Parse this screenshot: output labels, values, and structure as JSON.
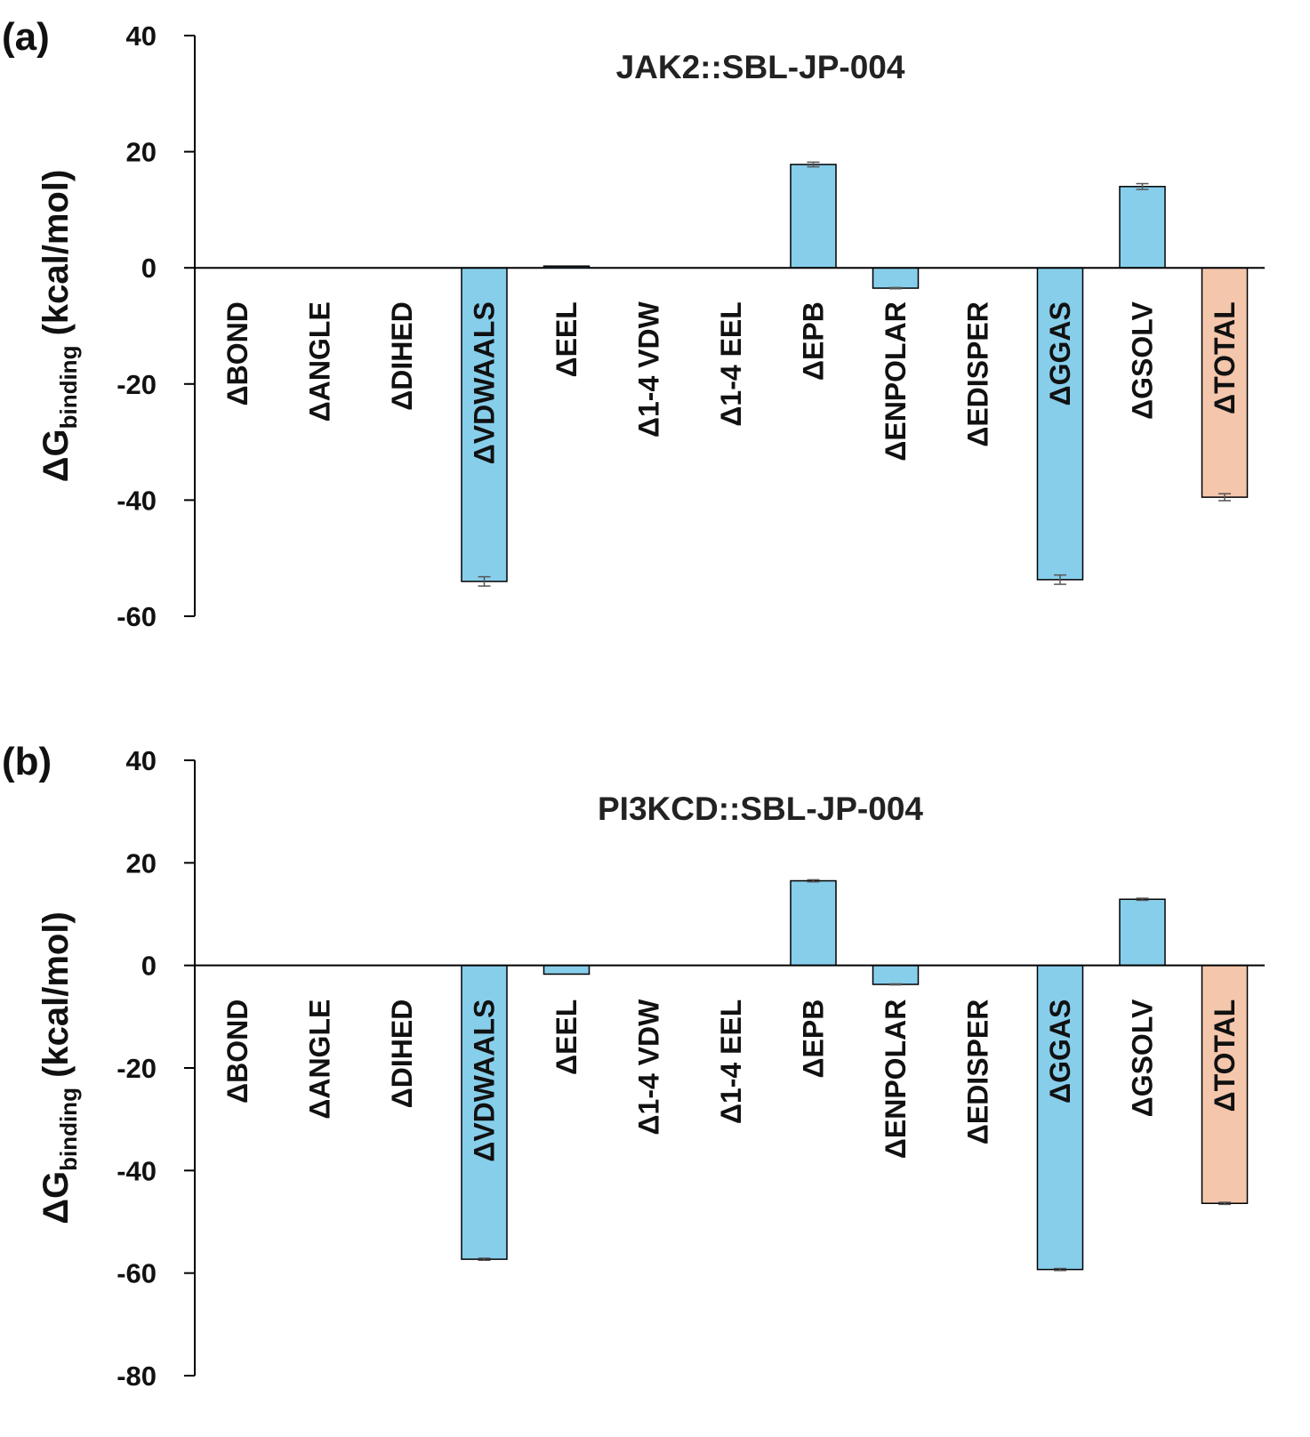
{
  "figure": {
    "ylabel_main": "ΔG",
    "ylabel_sub": "binding",
    "ylabel_unit": " (kcal/mol)"
  },
  "colors": {
    "bar_blue": "#87ceeb",
    "bar_total": "#f4c6ac",
    "axis": "#000000",
    "errorbar": "#555555"
  },
  "chart_data": [
    {
      "type": "bar",
      "panel_label": "(a)",
      "title": "JAK2::SBL-JP-004",
      "ylabel": "ΔGbinding (kcal/mol)",
      "ylim": [
        -60,
        40
      ],
      "yticks": [
        40,
        20,
        0,
        -20,
        -40,
        -60
      ],
      "categories": [
        "ΔBOND",
        "ΔANGLE",
        "ΔDIHED",
        "ΔVDWAALS",
        "ΔEEL",
        "Δ1-4 VDW",
        "Δ1-4 EEL",
        "ΔEPB",
        "ΔENPOLAR",
        "ΔEDISPER",
        "ΔGGAS",
        "ΔGSOLV",
        "ΔTOTAL"
      ],
      "values": [
        0,
        0,
        0,
        -54.0,
        0.3,
        0,
        0,
        17.8,
        -3.5,
        0,
        -53.7,
        14.0,
        -39.5
      ],
      "errors": [
        0,
        0,
        0,
        0.8,
        0,
        0,
        0,
        0.4,
        0.1,
        0,
        0.8,
        0.5,
        0.6
      ]
    },
    {
      "type": "bar",
      "panel_label": "(b)",
      "title": "PI3KCD::SBL-JP-004",
      "ylabel": "ΔGbinding (kcal/mol)",
      "ylim": [
        -80,
        40
      ],
      "yticks": [
        40,
        20,
        0,
        -20,
        -40,
        -60,
        -80
      ],
      "categories": [
        "ΔBOND",
        "ΔANGLE",
        "ΔDIHED",
        "ΔVDWAALS",
        "ΔEEL",
        "Δ1-4 VDW",
        "Δ1-4 EEL",
        "ΔEPB",
        "ΔENPOLAR",
        "ΔEDISPER",
        "ΔGGAS",
        "ΔGSOLV",
        "ΔTOTAL"
      ],
      "values": [
        0,
        0,
        0,
        -57.3,
        -1.7,
        0,
        0,
        16.5,
        -3.7,
        0,
        -59.3,
        12.9,
        -46.4
      ],
      "errors": [
        0,
        0,
        0,
        0.2,
        0,
        0,
        0,
        0.2,
        0.1,
        0,
        0.2,
        0.2,
        0.2
      ]
    }
  ]
}
